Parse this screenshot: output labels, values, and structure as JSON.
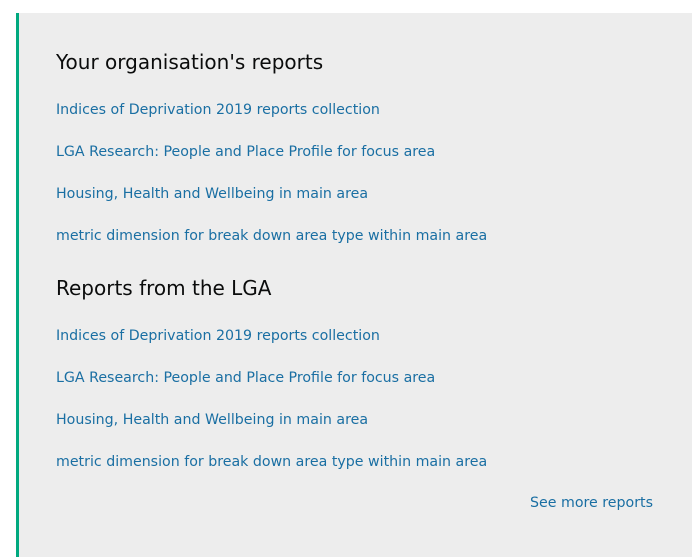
{
  "organisation_reports": {
    "title": "Your organisation's reports",
    "items": [
      {
        "label": "Indices of Deprivation 2019 reports collection"
      },
      {
        "label": "LGA Research: People and Place Profile for focus area"
      },
      {
        "label": "Housing, Health and Wellbeing in main area"
      },
      {
        "label": "metric dimension for break down area type within main area"
      }
    ]
  },
  "lga_reports": {
    "title": "Reports from the LGA",
    "items": [
      {
        "label": "Indices of Deprivation 2019 reports collection"
      },
      {
        "label": "LGA Research: People and Place Profile for focus area"
      },
      {
        "label": "Housing, Health and Wellbeing in main area"
      },
      {
        "label": "metric dimension for break down area type within main area"
      }
    ]
  },
  "see_more": {
    "label": "See more reports"
  },
  "colors": {
    "panel_background": "#ededed",
    "accent_border": "#00a97f",
    "link": "#1a6fa3",
    "heading": "#0b0c0c"
  }
}
